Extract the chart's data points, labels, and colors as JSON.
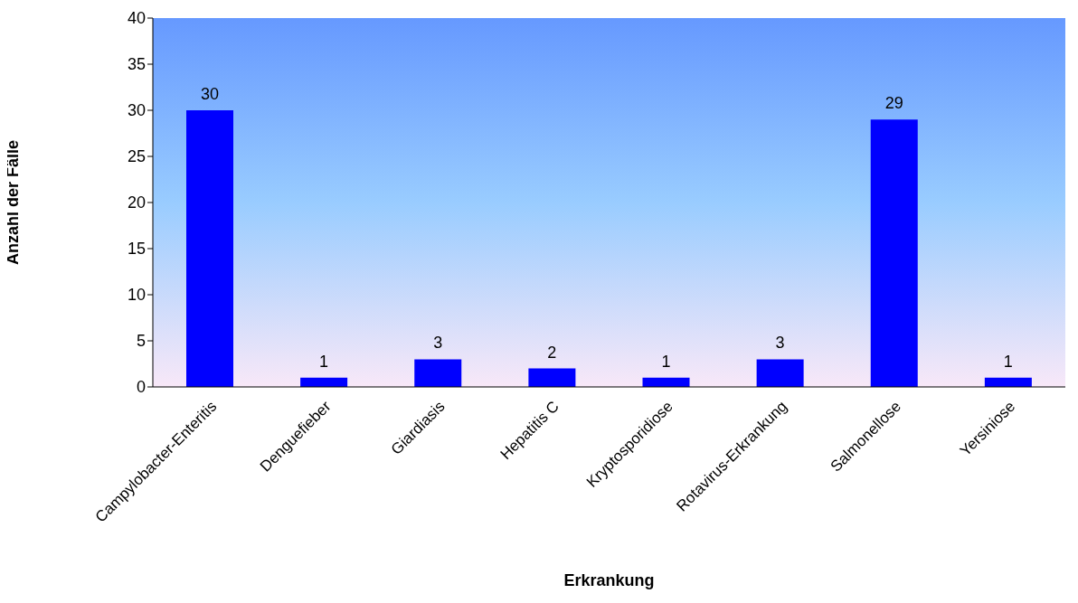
{
  "chart_data": {
    "type": "bar",
    "xlabel": "Erkrankung",
    "ylabel": "Anzahl der Fälle",
    "categories": [
      "Campylobacter-Enteritis",
      "Denguefieber",
      "Giardiasis",
      "Hepatitis C",
      "Kryptosporidiose",
      "Rotavirus-Erkrankung",
      "Salmonellose",
      "Yersiniose"
    ],
    "values": [
      30,
      1,
      3,
      2,
      1,
      3,
      29,
      1
    ],
    "color": "#0000ff",
    "ylim": [
      0,
      40
    ],
    "yticks": [
      0,
      5,
      10,
      15,
      20,
      25,
      30,
      35,
      40
    ],
    "data_labels": true
  }
}
